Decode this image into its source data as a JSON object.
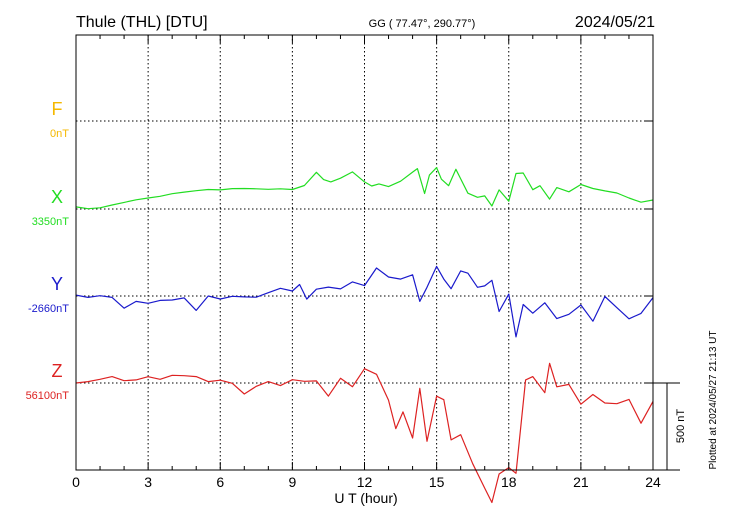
{
  "header": {
    "station": "Thule (THL)  [DTU]",
    "coords": "GG ( 77.47°, 290.77°)",
    "date": "2024/05/21"
  },
  "side_note": "Plotted at 2024/05/27 21:13 UT",
  "chart_data": {
    "type": "line",
    "xlabel": "U T (hour)",
    "xlim": [
      0,
      24
    ],
    "xticks": [
      "0",
      "3",
      "6",
      "9",
      "12",
      "15",
      "18",
      "21",
      "24"
    ],
    "scale_label": "500 nT",
    "scale_nT": 500,
    "panel_span_nT": 500,
    "grid": true,
    "series": [
      {
        "letter": "F",
        "baseline_label": "0nT",
        "color": "#f5b800",
        "x": [],
        "values": []
      },
      {
        "letter": "X",
        "baseline_label": "3350nT",
        "color": "#22dd22",
        "x": [
          0,
          0.5,
          1,
          1.5,
          2,
          2.5,
          3,
          3.5,
          4,
          4.5,
          5,
          5.5,
          6,
          6.5,
          7,
          7.5,
          8,
          8.5,
          9,
          9.5,
          10,
          10.3,
          10.6,
          11,
          11.5,
          12,
          12.3,
          12.6,
          13,
          13.5,
          14,
          14.2,
          14.5,
          14.7,
          15,
          15.2,
          15.5,
          15.8,
          16,
          16.3,
          16.7,
          17,
          17.3,
          17.6,
          18,
          18.3,
          18.6,
          19,
          19.3,
          19.7,
          20,
          20.5,
          21,
          21.5,
          22,
          22.5,
          23,
          23.5,
          24
        ],
        "values": [
          3362,
          3352,
          3357,
          3373,
          3388,
          3403,
          3413,
          3423,
          3438,
          3447,
          3455,
          3462,
          3460,
          3467,
          3468,
          3466,
          3463,
          3466,
          3462,
          3485,
          3561,
          3519,
          3506,
          3527,
          3563,
          3506,
          3482,
          3494,
          3479,
          3510,
          3562,
          3582,
          3439,
          3545,
          3588,
          3521,
          3484,
          3578,
          3523,
          3441,
          3417,
          3425,
          3367,
          3460,
          3395,
          3554,
          3557,
          3461,
          3484,
          3407,
          3473,
          3449,
          3491,
          3468,
          3454,
          3442,
          3413,
          3389,
          3402
        ]
      },
      {
        "letter": "Y",
        "baseline_label": "-2660nT",
        "color": "#1a1acc",
        "x": [
          0,
          0.5,
          1,
          1.5,
          2,
          2.5,
          3,
          3.5,
          4,
          4.5,
          5,
          5.5,
          6,
          6.5,
          7,
          7.5,
          8,
          8.5,
          9,
          9.3,
          9.6,
          10,
          10.5,
          11,
          11.5,
          12,
          12.5,
          13,
          13.5,
          14,
          14.3,
          14.6,
          15,
          15.3,
          15.6,
          16,
          16.3,
          16.7,
          17,
          17.3,
          17.6,
          18,
          18.3,
          18.6,
          19,
          19.5,
          20,
          20.5,
          21,
          21.5,
          22,
          22.5,
          23,
          23.5,
          24
        ],
        "values": [
          -2655,
          -2668,
          -2658,
          -2668,
          -2730,
          -2691,
          -2702,
          -2685,
          -2683,
          -2671,
          -2743,
          -2660,
          -2677,
          -2662,
          -2665,
          -2667,
          -2641,
          -2616,
          -2631,
          -2594,
          -2678,
          -2621,
          -2609,
          -2619,
          -2579,
          -2600,
          -2499,
          -2551,
          -2563,
          -2538,
          -2691,
          -2610,
          -2490,
          -2563,
          -2618,
          -2516,
          -2529,
          -2610,
          -2602,
          -2570,
          -2749,
          -2649,
          -2895,
          -2709,
          -2759,
          -2699,
          -2790,
          -2765,
          -2712,
          -2805,
          -2663,
          -2727,
          -2791,
          -2760,
          -2669
        ]
      },
      {
        "letter": "Z",
        "baseline_label": "56100nT",
        "color": "#dd2222",
        "x": [
          0,
          0.5,
          1,
          1.5,
          2,
          2.5,
          3,
          3.5,
          4,
          4.5,
          5,
          5.5,
          6,
          6.5,
          7,
          7.5,
          8,
          8.5,
          9,
          9.5,
          10,
          10.5,
          11,
          11.5,
          12,
          12.5,
          13,
          13.3,
          13.6,
          14,
          14.3,
          14.6,
          15,
          15.3,
          15.6,
          16,
          16.5,
          17,
          17.3,
          17.6,
          18,
          18.3,
          18.7,
          19,
          19.5,
          19.7,
          20,
          20.5,
          21,
          21.5,
          22,
          22.5,
          23,
          23.5,
          24
        ],
        "values": [
          56100,
          56108,
          56121,
          56137,
          56113,
          56118,
          56136,
          56121,
          56144,
          56142,
          56137,
          56108,
          56116,
          56098,
          56037,
          56081,
          56108,
          56085,
          56119,
          56110,
          56112,
          56025,
          56127,
          56079,
          56182,
          56150,
          56002,
          55838,
          55934,
          55784,
          56069,
          55765,
          56024,
          56004,
          55773,
          55803,
          55636,
          55496,
          55413,
          55577,
          55614,
          55581,
          56118,
          56137,
          56044,
          56213,
          56078,
          56092,
          55978,
          56034,
          55985,
          55981,
          56006,
          55869,
          55994
        ]
      }
    ]
  }
}
